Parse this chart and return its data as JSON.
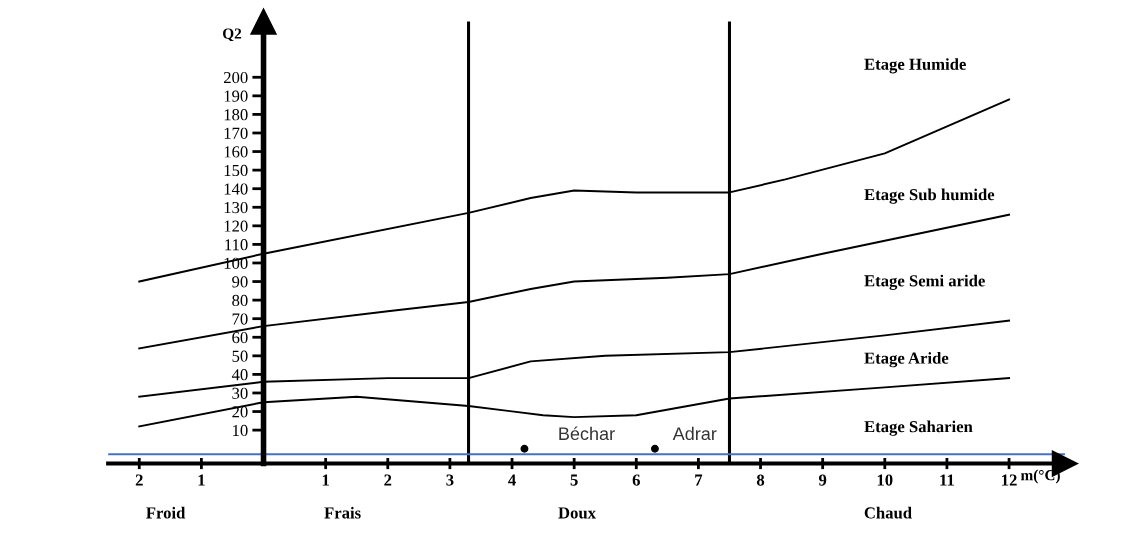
{
  "chart_data": {
    "type": "line",
    "ylabel": "Q2",
    "xlabel": "m(°C)",
    "xlim": [
      -2.5,
      12.9
    ],
    "ylim": [
      -8,
      230
    ],
    "xticks": [
      {
        "value": -2,
        "label": "2"
      },
      {
        "value": -1,
        "label": "1"
      },
      1,
      2,
      3,
      4,
      5,
      6,
      7,
      8,
      9,
      10,
      11,
      12
    ],
    "yticks": [
      10,
      20,
      30,
      40,
      50,
      60,
      70,
      80,
      90,
      100,
      110,
      120,
      130,
      140,
      150,
      160,
      170,
      180,
      190,
      200
    ],
    "series": [
      {
        "color": "#000000",
        "x": [
          -2,
          0,
          3.3,
          4.3,
          5,
          6,
          7.5,
          8.4,
          10,
          12
        ],
        "values": [
          90,
          105,
          127,
          135,
          139,
          138,
          138,
          145,
          159,
          188
        ]
      },
      {
        "color": "#000000",
        "x": [
          -2,
          0,
          2,
          3.3,
          4.3,
          5,
          6.5,
          7.5,
          9,
          12
        ],
        "values": [
          54,
          66,
          74,
          79,
          86,
          90,
          92,
          94,
          105,
          126
        ]
      },
      {
        "color": "#000000",
        "x": [
          -2,
          0,
          2,
          3.3,
          4.3,
          5.5,
          7.5,
          10,
          12
        ],
        "values": [
          28,
          36,
          38,
          38,
          47,
          50,
          52,
          61,
          69
        ]
      },
      {
        "color": "#000000",
        "x": [
          -2,
          0,
          1.5,
          3.3,
          4.5,
          5,
          6,
          7.5,
          10,
          12
        ],
        "values": [
          12,
          25,
          28,
          23,
          18,
          17,
          18,
          27,
          33,
          38
        ]
      },
      {
        "type": "scatter",
        "color": "#000000",
        "marker": "circle",
        "x": [
          4.2,
          6.3
        ],
        "values": [
          0,
          0
        ]
      }
    ],
    "marker": "none",
    "line_style": "solid",
    "ref_lines": [
      {
        "axis": "x",
        "value": 3.3,
        "color": "#000000"
      },
      {
        "axis": "x",
        "value": 7.5,
        "color": "#000000"
      },
      {
        "axis": "y",
        "value": -3,
        "color": "#4472c4"
      }
    ],
    "annotations": [
      "Etage Humide",
      "Etage Sub humide",
      "Etage Semi aride",
      "Etage Aride",
      "Etage Saharien",
      "Béchar",
      "Adrar",
      "Froid",
      "Frais",
      "Doux",
      "Chaud"
    ],
    "grid": false,
    "legend": false
  }
}
